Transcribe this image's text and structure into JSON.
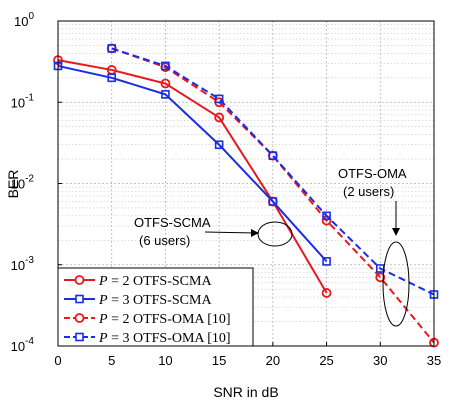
{
  "chart_data": {
    "type": "line",
    "title": "",
    "xlabel": "SNR in dB",
    "ylabel": "BER",
    "xlim": [
      0,
      35
    ],
    "ylim": [
      0.0001,
      1
    ],
    "yscale": "log",
    "grid": true,
    "legend_position": "bottom-left",
    "x_ticks": [
      "0",
      "5",
      "10",
      "15",
      "20",
      "25",
      "30",
      "35"
    ],
    "y_ticks": [
      {
        "base": "10",
        "exp": "0",
        "value": 1
      },
      {
        "base": "10",
        "exp": "-1",
        "value": 0.1
      },
      {
        "base": "10",
        "exp": "-2",
        "value": 0.01
      },
      {
        "base": "10",
        "exp": "-3",
        "value": 0.001
      },
      {
        "base": "10",
        "exp": "-4",
        "value": 0.0001
      }
    ],
    "series": [
      {
        "name": "P = 2 OTFS-SCMA",
        "name_var": "P",
        "name_eq": " = 2 ",
        "name_rest": "OTFS-SCMA",
        "color": "#e8181c",
        "marker": "circle",
        "dash": "solid",
        "x": [
          0,
          5,
          10,
          15,
          20,
          25
        ],
        "y": [
          0.33,
          0.25,
          0.17,
          0.065,
          0.006,
          0.00045
        ]
      },
      {
        "name": "P = 3 OTFS-SCMA",
        "name_var": "P",
        "name_eq": " = 3 ",
        "name_rest": "OTFS-SCMA",
        "color": "#1a2ce6",
        "marker": "square",
        "dash": "solid",
        "x": [
          0,
          5,
          10,
          15,
          20,
          25
        ],
        "y": [
          0.28,
          0.2,
          0.125,
          0.03,
          0.006,
          0.0011
        ]
      },
      {
        "name": "P = 2 OTFS-OMA [10]",
        "name_var": "P",
        "name_eq": " = 2 ",
        "name_rest": "OTFS-OMA [10]",
        "color": "#e8181c",
        "marker": "circle",
        "dash": "dashed",
        "x": [
          5,
          10,
          15,
          20,
          25,
          30,
          35
        ],
        "y": [
          0.46,
          0.27,
          0.1,
          0.022,
          0.0035,
          0.0007,
          0.00011
        ]
      },
      {
        "name": "P = 3 OTFS-OMA [10]",
        "name_var": "P",
        "name_eq": " = 3 ",
        "name_rest": "OTFS-OMA [10]",
        "color": "#1a2ce6",
        "marker": "square",
        "dash": "dashed",
        "x": [
          5,
          10,
          15,
          20,
          25,
          30,
          35
        ],
        "y": [
          0.46,
          0.28,
          0.11,
          0.022,
          0.004,
          0.0009,
          0.00043
        ]
      }
    ],
    "annotations": [
      {
        "name": "annotation-otfs-scma",
        "line1": "OTFS-SCMA",
        "line2": "(6 users)"
      },
      {
        "name": "annotation-otfs-oma",
        "line1": "OTFS-OMA",
        "line2": "(2 users)"
      }
    ]
  }
}
